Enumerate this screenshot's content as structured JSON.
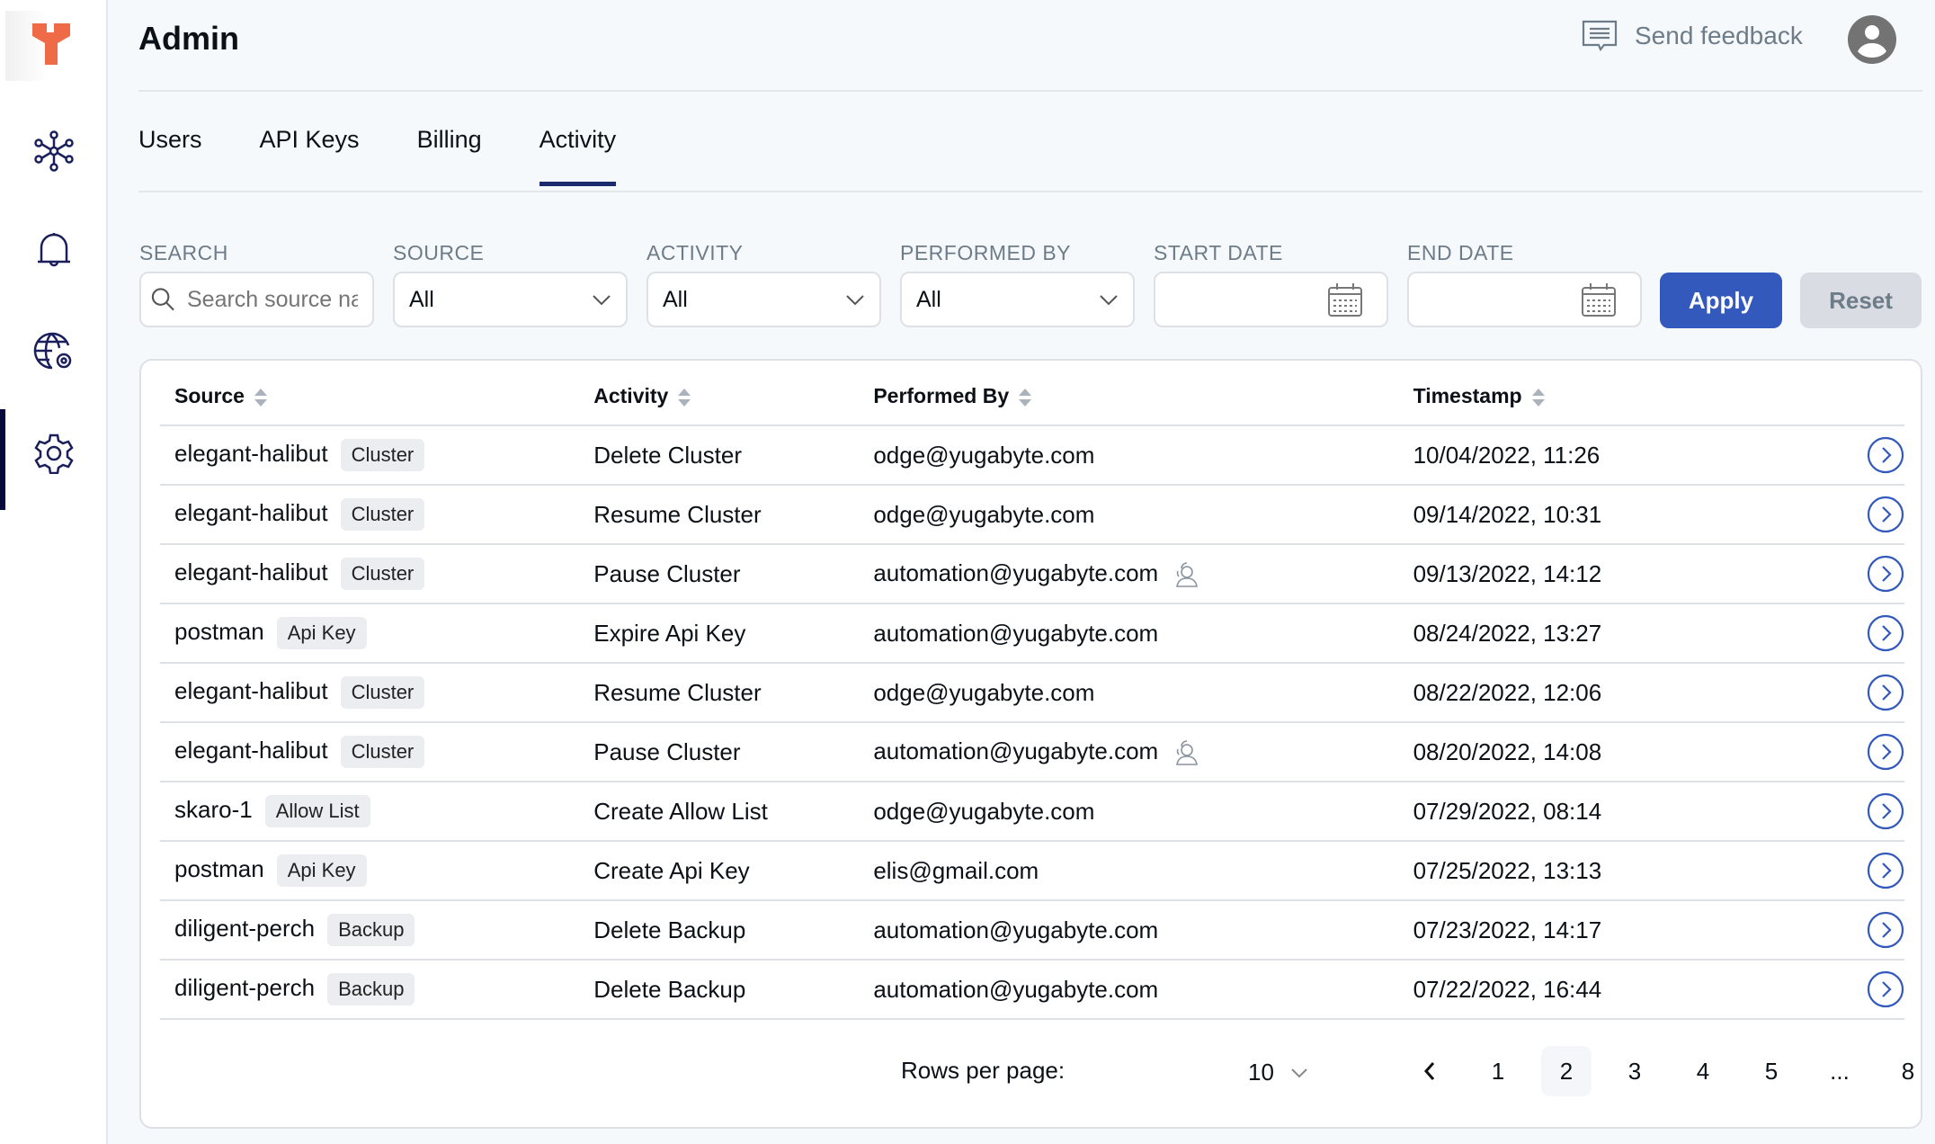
{
  "app": {
    "title": "Admin",
    "feedback_label": "Send feedback"
  },
  "sidebar": {
    "items": [
      {
        "icon": "cluster-icon"
      },
      {
        "icon": "bell-icon"
      },
      {
        "icon": "globe-gear-icon"
      },
      {
        "icon": "gear-icon",
        "active": true
      }
    ]
  },
  "tabs": [
    {
      "label": "Users"
    },
    {
      "label": "API Keys"
    },
    {
      "label": "Billing"
    },
    {
      "label": "Activity",
      "active": true
    }
  ],
  "filters": {
    "search": {
      "label": "SEARCH",
      "placeholder": "Search source name"
    },
    "source": {
      "label": "SOURCE",
      "value": "All"
    },
    "activity": {
      "label": "ACTIVITY",
      "value": "All"
    },
    "performed_by": {
      "label": "PERFORMED BY",
      "value": "All"
    },
    "start_date": {
      "label": "START DATE",
      "value": ""
    },
    "end_date": {
      "label": "END DATE",
      "value": ""
    },
    "apply_label": "Apply",
    "reset_label": "Reset"
  },
  "table": {
    "columns": [
      "Source",
      "Activity",
      "Performed By",
      "Timestamp"
    ],
    "rows": [
      {
        "source": "elegant-halibut",
        "type": "Cluster",
        "activity": "Delete Cluster",
        "by": "odge@yugabyte.com",
        "auto": false,
        "ts": "10/04/2022, 11:26"
      },
      {
        "source": "elegant-halibut",
        "type": "Cluster",
        "activity": "Resume Cluster",
        "by": "odge@yugabyte.com",
        "auto": false,
        "ts": "09/14/2022, 10:31"
      },
      {
        "source": "elegant-halibut",
        "type": "Cluster",
        "activity": "Pause Cluster",
        "by": "automation@yugabyte.com",
        "auto": true,
        "ts": "09/13/2022, 14:12"
      },
      {
        "source": "postman",
        "type": "Api Key",
        "activity": "Expire Api Key",
        "by": "automation@yugabyte.com",
        "auto": false,
        "ts": "08/24/2022, 13:27"
      },
      {
        "source": "elegant-halibut",
        "type": "Cluster",
        "activity": "Resume Cluster",
        "by": "odge@yugabyte.com",
        "auto": false,
        "ts": "08/22/2022, 12:06"
      },
      {
        "source": "elegant-halibut",
        "type": "Cluster",
        "activity": "Pause Cluster",
        "by": "automation@yugabyte.com",
        "auto": true,
        "ts": "08/20/2022, 14:08"
      },
      {
        "source": "skaro-1",
        "type": "Allow List",
        "activity": "Create Allow List",
        "by": "odge@yugabyte.com",
        "auto": false,
        "ts": "07/29/2022, 08:14"
      },
      {
        "source": "postman",
        "type": "Api Key",
        "activity": "Create Api Key",
        "by": "elis@gmail.com",
        "auto": false,
        "ts": "07/25/2022, 13:13"
      },
      {
        "source": "diligent-perch",
        "type": "Backup",
        "activity": "Delete Backup",
        "by": "automation@yugabyte.com",
        "auto": false,
        "ts": "07/23/2022, 14:17"
      },
      {
        "source": "diligent-perch",
        "type": "Backup",
        "activity": "Delete Backup",
        "by": "automation@yugabyte.com",
        "auto": false,
        "ts": "07/22/2022, 16:44"
      }
    ]
  },
  "pagination": {
    "rows_per_page_label": "Rows per page:",
    "rows_per_page": "10",
    "pages": [
      "1",
      "2",
      "3",
      "4",
      "5",
      "...",
      "8"
    ],
    "current": "2"
  },
  "colors": {
    "accent": "#3359bd",
    "nav": "#1a2a6c",
    "logo": "#ef6b48"
  }
}
